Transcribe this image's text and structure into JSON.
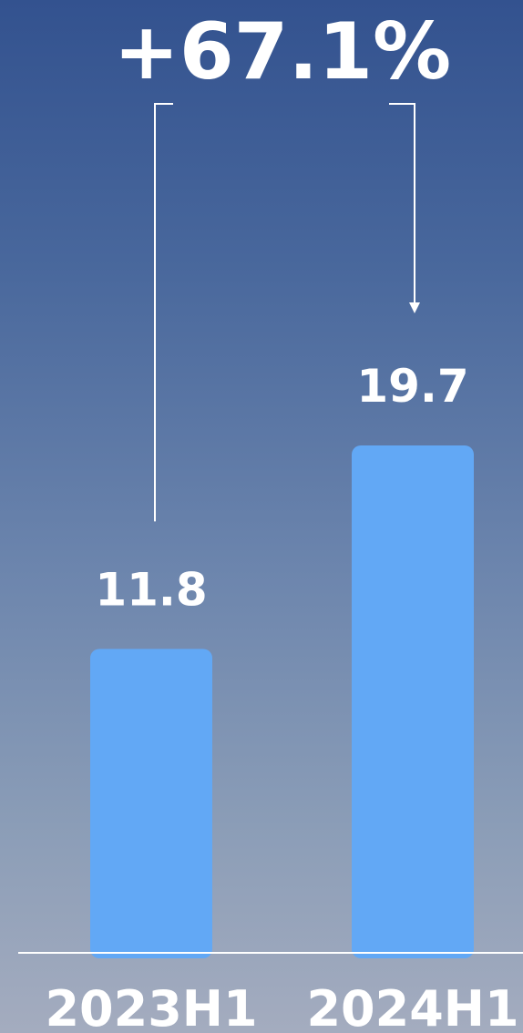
{
  "chart_data": {
    "type": "bar",
    "categories": [
      "2023H1",
      "2024H1"
    ],
    "values": [
      11.8,
      19.7
    ],
    "value_labels": [
      "11.8",
      "19.7"
    ],
    "change_label": "+67.1%",
    "title": "",
    "xlabel": "",
    "ylabel": "",
    "ylim": [
      0,
      19.7
    ],
    "grid": false,
    "legend": "none",
    "bar_color": "#62a8f5",
    "text_color": "#ffffff",
    "axis_color": "#ffffff",
    "background_gradient": [
      "#33528f",
      "#a4acbf"
    ]
  }
}
